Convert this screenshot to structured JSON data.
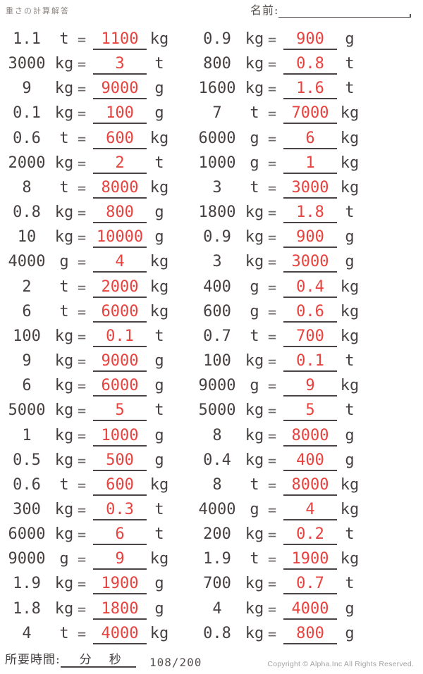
{
  "header": {
    "title": "重さの計算解答",
    "name_label": "名前:"
  },
  "symbols": {
    "equals": "="
  },
  "colors": {
    "answer_red": "#e8423e",
    "problem_text": "#474040",
    "underline": "#4a4446",
    "muted_gray": "#a2a2a2"
  },
  "footer": {
    "time_label": "所要時間:",
    "minutes_label": "分",
    "seconds_label": "秒",
    "progress": "108/200",
    "copyright": "Copyright © Alpha.Inc All Rights Reserved."
  },
  "problems": {
    "left": [
      {
        "value": "1.1",
        "unit": "t",
        "answer": "1100",
        "answer_unit": "kg"
      },
      {
        "value": "3000",
        "unit": "kg",
        "answer": "3",
        "answer_unit": "t"
      },
      {
        "value": "9",
        "unit": "kg",
        "answer": "9000",
        "answer_unit": "g"
      },
      {
        "value": "0.1",
        "unit": "kg",
        "answer": "100",
        "answer_unit": "g"
      },
      {
        "value": "0.6",
        "unit": "t",
        "answer": "600",
        "answer_unit": "kg"
      },
      {
        "value": "2000",
        "unit": "kg",
        "answer": "2",
        "answer_unit": "t"
      },
      {
        "value": "8",
        "unit": "t",
        "answer": "8000",
        "answer_unit": "kg"
      },
      {
        "value": "0.8",
        "unit": "kg",
        "answer": "800",
        "answer_unit": "g"
      },
      {
        "value": "10",
        "unit": "kg",
        "answer": "10000",
        "answer_unit": "g"
      },
      {
        "value": "4000",
        "unit": "g",
        "answer": "4",
        "answer_unit": "kg"
      },
      {
        "value": "2",
        "unit": "t",
        "answer": "2000",
        "answer_unit": "kg"
      },
      {
        "value": "6",
        "unit": "t",
        "answer": "6000",
        "answer_unit": "kg"
      },
      {
        "value": "100",
        "unit": "kg",
        "answer": "0.1",
        "answer_unit": "t"
      },
      {
        "value": "9",
        "unit": "kg",
        "answer": "9000",
        "answer_unit": "g"
      },
      {
        "value": "6",
        "unit": "kg",
        "answer": "6000",
        "answer_unit": "g"
      },
      {
        "value": "5000",
        "unit": "kg",
        "answer": "5",
        "answer_unit": "t"
      },
      {
        "value": "1",
        "unit": "kg",
        "answer": "1000",
        "answer_unit": "g"
      },
      {
        "value": "0.5",
        "unit": "kg",
        "answer": "500",
        "answer_unit": "g"
      },
      {
        "value": "0.6",
        "unit": "t",
        "answer": "600",
        "answer_unit": "kg"
      },
      {
        "value": "300",
        "unit": "kg",
        "answer": "0.3",
        "answer_unit": "t"
      },
      {
        "value": "6000",
        "unit": "kg",
        "answer": "6",
        "answer_unit": "t"
      },
      {
        "value": "9000",
        "unit": "g",
        "answer": "9",
        "answer_unit": "kg"
      },
      {
        "value": "1.9",
        "unit": "kg",
        "answer": "1900",
        "answer_unit": "g"
      },
      {
        "value": "1.8",
        "unit": "kg",
        "answer": "1800",
        "answer_unit": "g"
      },
      {
        "value": "4",
        "unit": "t",
        "answer": "4000",
        "answer_unit": "kg"
      }
    ],
    "right": [
      {
        "value": "0.9",
        "unit": "kg",
        "answer": "900",
        "answer_unit": "g"
      },
      {
        "value": "800",
        "unit": "kg",
        "answer": "0.8",
        "answer_unit": "t"
      },
      {
        "value": "1600",
        "unit": "kg",
        "answer": "1.6",
        "answer_unit": "t"
      },
      {
        "value": "7",
        "unit": "t",
        "answer": "7000",
        "answer_unit": "kg"
      },
      {
        "value": "6000",
        "unit": "g",
        "answer": "6",
        "answer_unit": "kg"
      },
      {
        "value": "1000",
        "unit": "g",
        "answer": "1",
        "answer_unit": "kg"
      },
      {
        "value": "3",
        "unit": "t",
        "answer": "3000",
        "answer_unit": "kg"
      },
      {
        "value": "1800",
        "unit": "kg",
        "answer": "1.8",
        "answer_unit": "t"
      },
      {
        "value": "0.9",
        "unit": "kg",
        "answer": "900",
        "answer_unit": "g"
      },
      {
        "value": "3",
        "unit": "kg",
        "answer": "3000",
        "answer_unit": "g"
      },
      {
        "value": "400",
        "unit": "g",
        "answer": "0.4",
        "answer_unit": "kg"
      },
      {
        "value": "600",
        "unit": "g",
        "answer": "0.6",
        "answer_unit": "kg"
      },
      {
        "value": "0.7",
        "unit": "t",
        "answer": "700",
        "answer_unit": "kg"
      },
      {
        "value": "100",
        "unit": "kg",
        "answer": "0.1",
        "answer_unit": "t"
      },
      {
        "value": "9000",
        "unit": "g",
        "answer": "9",
        "answer_unit": "kg"
      },
      {
        "value": "5000",
        "unit": "kg",
        "answer": "5",
        "answer_unit": "t"
      },
      {
        "value": "8",
        "unit": "kg",
        "answer": "8000",
        "answer_unit": "g"
      },
      {
        "value": "0.4",
        "unit": "kg",
        "answer": "400",
        "answer_unit": "g"
      },
      {
        "value": "8",
        "unit": "t",
        "answer": "8000",
        "answer_unit": "kg"
      },
      {
        "value": "4000",
        "unit": "g",
        "answer": "4",
        "answer_unit": "kg"
      },
      {
        "value": "200",
        "unit": "kg",
        "answer": "0.2",
        "answer_unit": "t"
      },
      {
        "value": "1.9",
        "unit": "t",
        "answer": "1900",
        "answer_unit": "kg"
      },
      {
        "value": "700",
        "unit": "kg",
        "answer": "0.7",
        "answer_unit": "t"
      },
      {
        "value": "4",
        "unit": "kg",
        "answer": "4000",
        "answer_unit": "g"
      },
      {
        "value": "0.8",
        "unit": "kg",
        "answer": "800",
        "answer_unit": "g"
      }
    ]
  }
}
